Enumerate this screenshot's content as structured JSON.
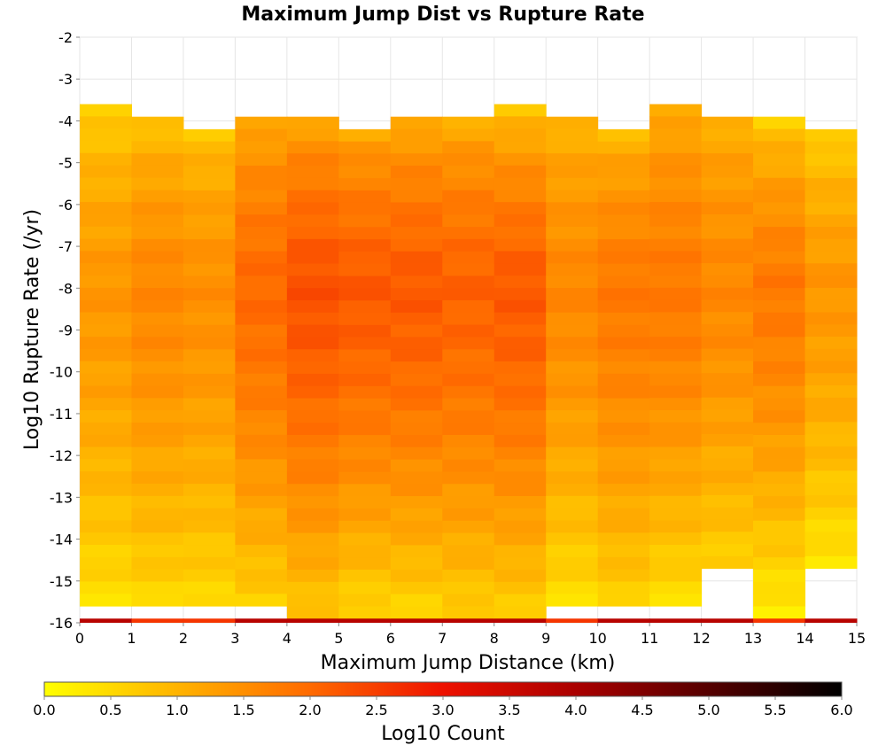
{
  "chart_data": {
    "type": "heatmap",
    "title": "Maximum Jump Dist vs Rupture Rate",
    "xlabel": "Maximum Jump Distance (km)",
    "ylabel": "Log10 Rupture Rate (/yr)",
    "xlim": [
      0,
      15
    ],
    "ylim": [
      -16,
      -2
    ],
    "x_ticks": [
      "0",
      "1",
      "2",
      "3",
      "4",
      "5",
      "6",
      "7",
      "8",
      "9",
      "10",
      "11",
      "12",
      "13",
      "14",
      "15"
    ],
    "y_ticks": [
      "-2",
      "-3",
      "-4",
      "-5",
      "-6",
      "-7",
      "-8",
      "-9",
      "-10",
      "-11",
      "-12",
      "-13",
      "-14",
      "-15",
      "-16"
    ],
    "y_bin_width": 0.29,
    "x_bin_centers": [
      0.5,
      1.5,
      2.5,
      3.5,
      4.5,
      5.5,
      6.5,
      7.5,
      8.5,
      9.5,
      10.5,
      11.5,
      12.5,
      13.5,
      14.5
    ],
    "columns": [
      {
        "x": 0.5,
        "y_top": -3.6,
        "y_bottom": -15.6,
        "top_value": 0.4,
        "peak_value": 1.4,
        "bottom_value": 0.4
      },
      {
        "x": 1.5,
        "y_top": -3.9,
        "y_bottom": -15.6,
        "top_value": 0.6,
        "peak_value": 1.6,
        "bottom_value": 0.5
      },
      {
        "x": 2.5,
        "y_top": -4.2,
        "y_bottom": -15.6,
        "top_value": 0.6,
        "peak_value": 1.5,
        "bottom_value": 0.5
      },
      {
        "x": 3.5,
        "y_top": -3.9,
        "y_bottom": -15.6,
        "top_value": 0.9,
        "peak_value": 2.0,
        "bottom_value": 0.6
      },
      {
        "x": 4.5,
        "y_top": -3.9,
        "y_bottom": -15.9,
        "top_value": 0.9,
        "peak_value": 2.3,
        "bottom_value": 0.7
      },
      {
        "x": 5.5,
        "y_top": -4.2,
        "y_bottom": -15.9,
        "top_value": 0.9,
        "peak_value": 2.2,
        "bottom_value": 0.5
      },
      {
        "x": 6.5,
        "y_top": -3.9,
        "y_bottom": -15.9,
        "top_value": 0.8,
        "peak_value": 2.2,
        "bottom_value": 0.5
      },
      {
        "x": 7.5,
        "y_top": -3.9,
        "y_bottom": -15.9,
        "top_value": 0.8,
        "peak_value": 2.1,
        "bottom_value": 0.6
      },
      {
        "x": 8.5,
        "y_top": -3.6,
        "y_bottom": -15.9,
        "top_value": 0.4,
        "peak_value": 2.2,
        "bottom_value": 0.6
      },
      {
        "x": 9.5,
        "y_top": -3.9,
        "y_bottom": -15.6,
        "top_value": 0.8,
        "peak_value": 1.6,
        "bottom_value": 0.4
      },
      {
        "x": 10.5,
        "y_top": -4.2,
        "y_bottom": -15.6,
        "top_value": 0.7,
        "peak_value": 1.8,
        "bottom_value": 0.6
      },
      {
        "x": 11.5,
        "y_top": -3.6,
        "y_bottom": -15.6,
        "top_value": 0.9,
        "peak_value": 1.8,
        "bottom_value": 0.4
      },
      {
        "x": 12.5,
        "y_top": -3.9,
        "y_bottom": -14.7,
        "top_value": 0.9,
        "peak_value": 1.6,
        "bottom_value": 0.6
      },
      {
        "x": 13.5,
        "y_top": -3.9,
        "y_bottom": -15.9,
        "top_value": 0.4,
        "peak_value": 1.8,
        "bottom_value": 0.2
      },
      {
        "x": 14.5,
        "y_top": -4.2,
        "y_bottom": -14.7,
        "top_value": 0.4,
        "peak_value": 1.4,
        "bottom_value": 0.3
      }
    ],
    "bottom_row": {
      "y_bin": [
        -16,
        -15.9
      ],
      "note_values": [
        3.8,
        2.6,
        2.6,
        3.8,
        3.8,
        3.8,
        3.8,
        3.8,
        3.8,
        2.6,
        3.8,
        3.8,
        3.8,
        2.6,
        3.8
      ]
    },
    "colorbar": {
      "label": "Log10 Count",
      "range": [
        0.0,
        6.0
      ],
      "ticks": [
        "0.0",
        "0.5",
        "1.0",
        "1.5",
        "2.0",
        "2.5",
        "3.0",
        "3.5",
        "4.0",
        "4.5",
        "5.0",
        "5.5",
        "6.0"
      ],
      "colormap": "hot-reversed",
      "color_stops": [
        {
          "v": 0.0,
          "color": "#ffff00"
        },
        {
          "v": 1.0,
          "color": "#ffb300"
        },
        {
          "v": 2.0,
          "color": "#ff6a00"
        },
        {
          "v": 3.0,
          "color": "#ee1100"
        },
        {
          "v": 4.0,
          "color": "#aa0000"
        },
        {
          "v": 5.0,
          "color": "#550000"
        },
        {
          "v": 6.0,
          "color": "#000000"
        }
      ]
    },
    "grid": true,
    "legend": "colorbar-bottom"
  }
}
